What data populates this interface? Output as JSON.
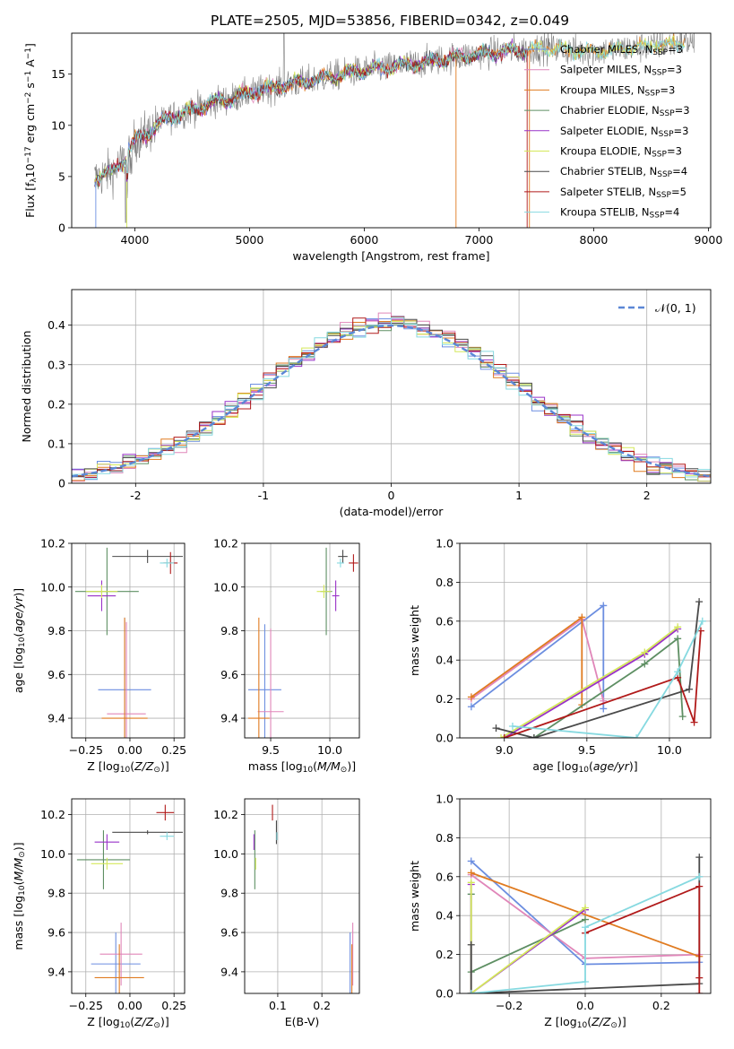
{
  "figure_title": "PLATE=2505, MJD=53856, FIBERID=0342, z=0.049",
  "colors": {
    "Chabrier MILES": "#6c8ee0",
    "Salpeter MILES": "#e086b9",
    "Kroupa MILES": "#e07b20",
    "Chabrier ELODIE": "#5e8f63",
    "Salpeter ELODIE": "#9932c8",
    "Kroupa ELODIE": "#d4e85a",
    "Chabrier STELIB": "#4a4a4a",
    "Salpeter STELIB": "#b11a1a",
    "Kroupa STELIB": "#86d9e0",
    "data": "#808080",
    "normal": "#5b87d6"
  },
  "legend_spectrum": [
    {
      "key": "Chabrier MILES",
      "prefix": "Chabrier MILES, N",
      "nssp": "=3"
    },
    {
      "key": "Salpeter MILES",
      "prefix": "Salpeter MILES, N",
      "nssp": "=3"
    },
    {
      "key": "Kroupa MILES",
      "prefix": "Kroupa MILES, N",
      "nssp": "=3"
    },
    {
      "key": "Chabrier ELODIE",
      "prefix": "Chabrier ELODIE, N",
      "nssp": "=3"
    },
    {
      "key": "Salpeter ELODIE",
      "prefix": "Salpeter ELODIE, N",
      "nssp": "=3"
    },
    {
      "key": "Kroupa ELODIE",
      "prefix": "Kroupa ELODIE, N",
      "nssp": "=3"
    },
    {
      "key": "Chabrier STELIB",
      "prefix": "Chabrier STELIB, N",
      "nssp": "=4"
    },
    {
      "key": "Salpeter STELIB",
      "prefix": "Salpeter STELIB, N",
      "nssp": "=5"
    },
    {
      "key": "Kroupa STELIB",
      "prefix": "Kroupa STELIB, N",
      "nssp": "=4"
    }
  ],
  "legend_ssp_subscript": "SSP",
  "legend_hist": "𝒩(0, 1)",
  "chart_data": [
    {
      "id": "spectrum",
      "type": "line",
      "xlabel": "wavelength [Angstrom, rest frame]",
      "ylabel": "Flux [f_λ 10^-17 erg cm^-2 s^-1 A^-1]",
      "xlim": [
        3450,
        9020
      ],
      "ylim": [
        0,
        19
      ],
      "xticks": [
        4000,
        5000,
        6000,
        7000,
        8000,
        9000
      ],
      "yticks": [
        0,
        5,
        10,
        15
      ],
      "grid": false,
      "legend": "top-right",
      "continuum": [
        [
          3650,
          4.8
        ],
        [
          3800,
          5.5
        ],
        [
          3900,
          6.5
        ],
        [
          4000,
          8.5
        ],
        [
          4100,
          9.2
        ],
        [
          4300,
          10.8
        ],
        [
          4500,
          11.5
        ],
        [
          4700,
          12.3
        ],
        [
          4900,
          12.8
        ],
        [
          5100,
          13.4
        ],
        [
          5300,
          13.9
        ],
        [
          5500,
          14.3
        ],
        [
          5700,
          14.8
        ],
        [
          5900,
          15.2
        ],
        [
          6100,
          15.5
        ],
        [
          6300,
          15.8
        ],
        [
          6500,
          16.1
        ],
        [
          6700,
          16.5
        ],
        [
          6900,
          16.8
        ],
        [
          7100,
          17.1
        ],
        [
          7300,
          17.3
        ],
        [
          7420,
          17.4
        ]
      ],
      "model_extension": [
        [
          7420,
          17.4
        ],
        [
          7600,
          17.6
        ],
        [
          7800,
          17.3
        ],
        [
          8000,
          17.2
        ],
        [
          8200,
          17.4
        ],
        [
          8400,
          17.6
        ],
        [
          8600,
          17.9
        ],
        [
          8800,
          18.1
        ]
      ]
    },
    {
      "id": "residuals",
      "type": "step",
      "xlabel": "(data-model)/error",
      "ylabel": "Normed distribution",
      "xlim": [
        -2.5,
        2.5
      ],
      "ylim": [
        0,
        0.49
      ],
      "xticks": [
        -2,
        -1,
        0,
        1,
        2
      ],
      "yticks": [
        0.0,
        0.1,
        0.2,
        0.3,
        0.4
      ],
      "grid": true,
      "legend": "top-right"
    },
    {
      "id": "age_vs_Z",
      "type": "errorbar",
      "xlabel": "Z [log10(Z/Z☉)]",
      "ylabel": "age [log10(age/yr)]",
      "xlim": [
        -0.33,
        0.31
      ],
      "ylim": [
        9.31,
        10.2
      ],
      "xticks": [
        -0.25,
        0.0,
        0.25
      ],
      "xticklabels": [
        "−0.25",
        "0.00",
        "0.25"
      ],
      "yticks": [
        9.4,
        9.6,
        9.8,
        10.0,
        10.2
      ],
      "yticklabels": [
        "9.4",
        "9.6",
        "9.8",
        "10.0",
        "10.2"
      ],
      "grid": true,
      "points": [
        {
          "model": "Chabrier MILES",
          "x": -0.03,
          "xerr": 0.15,
          "y": 9.53,
          "yerr": 0.33
        },
        {
          "model": "Salpeter MILES",
          "x": -0.02,
          "xerr": 0.11,
          "y": 9.42,
          "yerr": 0.42
        },
        {
          "model": "Kroupa MILES",
          "x": -0.03,
          "xerr": 0.13,
          "y": 9.4,
          "yerr": 0.46
        },
        {
          "model": "Chabrier ELODIE",
          "x": -0.13,
          "xerr": 0.18,
          "y": 9.98,
          "yerr": 0.2
        },
        {
          "model": "Salpeter ELODIE",
          "x": -0.16,
          "xerr": 0.08,
          "y": 9.96,
          "yerr": 0.07
        },
        {
          "model": "Kroupa ELODIE",
          "x": -0.16,
          "xerr": 0.09,
          "y": 9.98,
          "yerr": 0.03
        },
        {
          "model": "Chabrier STELIB",
          "x": 0.1,
          "xerr": 0.2,
          "y": 10.14,
          "yerr": 0.03
        },
        {
          "model": "Salpeter STELIB",
          "x": 0.23,
          "xerr": 0.04,
          "y": 10.11,
          "yerr": 0.05
        },
        {
          "model": "Kroupa STELIB",
          "x": 0.21,
          "xerr": 0.04,
          "y": 10.11,
          "yerr": 0.02
        }
      ]
    },
    {
      "id": "age_vs_mass",
      "type": "errorbar",
      "xlabel": "mass [log10(M/M☉)]",
      "ylabel": "",
      "xlim": [
        9.28,
        10.25
      ],
      "ylim": [
        9.31,
        10.2
      ],
      "xticks": [
        9.5,
        10.0
      ],
      "xticklabels": [
        "9.5",
        "10.0"
      ],
      "yticks": [
        9.4,
        9.6,
        9.8,
        10.0,
        10.2
      ],
      "yticklabels": [
        "9.4",
        "9.6",
        "9.8",
        "10.0",
        "10.2"
      ],
      "grid": true,
      "points": [
        {
          "model": "Chabrier MILES",
          "x": 9.45,
          "xerr": 0.14,
          "y": 9.53,
          "yerr": 0.3
        },
        {
          "model": "Salpeter MILES",
          "x": 9.5,
          "xerr": 0.11,
          "y": 9.43,
          "yerr": 0.38
        },
        {
          "model": "Kroupa MILES",
          "x": 9.4,
          "xerr": 0.09,
          "y": 9.4,
          "yerr": 0.46
        },
        {
          "model": "Chabrier ELODIE",
          "x": 9.97,
          "xerr": 0.05,
          "y": 9.98,
          "yerr": 0.2
        },
        {
          "model": "Salpeter ELODIE",
          "x": 10.05,
          "xerr": 0.03,
          "y": 9.96,
          "yerr": 0.07
        },
        {
          "model": "Kroupa ELODIE",
          "x": 9.95,
          "xerr": 0.06,
          "y": 9.98,
          "yerr": 0.03
        },
        {
          "model": "Chabrier STELIB",
          "x": 10.11,
          "xerr": 0.04,
          "y": 10.14,
          "yerr": 0.03
        },
        {
          "model": "Salpeter STELIB",
          "x": 10.2,
          "xerr": 0.04,
          "y": 10.11,
          "yerr": 0.04
        },
        {
          "model": "Kroupa STELIB",
          "x": 10.09,
          "xerr": 0.03,
          "y": 10.11,
          "yerr": 0.02
        }
      ]
    },
    {
      "id": "weight_vs_age",
      "type": "line",
      "xlabel": "age [log10(age/yr)]",
      "ylabel": "mass weight",
      "xlim": [
        8.73,
        10.25
      ],
      "ylim": [
        0,
        1.0
      ],
      "xticks": [
        9.0,
        9.5,
        10.0
      ],
      "xticklabels": [
        "9.0",
        "9.5",
        "10.0"
      ],
      "yticks": [
        0,
        0.2,
        0.4,
        0.6,
        0.8,
        1.0
      ],
      "yticklabels": [
        "0.0",
        "0.2",
        "0.4",
        "0.6",
        "0.8",
        "1.0"
      ],
      "grid": true,
      "series": [
        {
          "model": "Chabrier MILES",
          "x": [
            8.8,
            9.6,
            9.6
          ],
          "y": [
            0.16,
            0.68,
            0.15
          ]
        },
        {
          "model": "Salpeter MILES",
          "x": [
            8.8,
            9.47,
            9.6
          ],
          "y": [
            0.2,
            0.61,
            0.19
          ]
        },
        {
          "model": "Kroupa MILES",
          "x": [
            8.8,
            9.47,
            9.47
          ],
          "y": [
            0.21,
            0.62,
            0.17
          ]
        },
        {
          "model": "Chabrier ELODIE",
          "x": [
            9.18,
            9.85,
            10.05,
            10.08
          ],
          "y": [
            0.0,
            0.38,
            0.51,
            0.11
          ]
        },
        {
          "model": "Salpeter ELODIE",
          "x": [
            9.0,
            9.85,
            10.05
          ],
          "y": [
            0.0,
            0.43,
            0.56
          ]
        },
        {
          "model": "Kroupa ELODIE",
          "x": [
            8.98,
            9.85,
            10.05
          ],
          "y": [
            0.0,
            0.44,
            0.57
          ]
        },
        {
          "model": "Chabrier STELIB",
          "x": [
            8.95,
            9.18,
            10.12,
            10.18
          ],
          "y": [
            0.05,
            0.0,
            0.25,
            0.7
          ]
        },
        {
          "model": "Salpeter STELIB",
          "x": [
            9.0,
            10.05,
            10.15,
            10.19
          ],
          "y": [
            0.0,
            0.31,
            0.08,
            0.55
          ]
        },
        {
          "model": "Kroupa STELIB",
          "x": [
            9.05,
            9.8,
            10.05,
            10.2
          ],
          "y": [
            0.06,
            0.0,
            0.34,
            0.6
          ]
        }
      ]
    },
    {
      "id": "mass_vs_Z",
      "type": "errorbar",
      "xlabel": "Z [log10(Z/Z☉)]",
      "ylabel": "mass [log10(M/M☉)]",
      "xlim": [
        -0.33,
        0.31
      ],
      "ylim": [
        9.29,
        10.28
      ],
      "xticks": [
        -0.25,
        0.0,
        0.25
      ],
      "xticklabels": [
        "−0.25",
        "0.00",
        "0.25"
      ],
      "yticks": [
        9.4,
        9.6,
        9.8,
        10.0,
        10.2
      ],
      "yticklabels": [
        "9.4",
        "9.6",
        "9.8",
        "10.0",
        "10.2"
      ],
      "grid": true,
      "points": [
        {
          "model": "Chabrier MILES",
          "x": -0.08,
          "xerr": 0.14,
          "y": 9.44,
          "yerr": 0.16
        },
        {
          "model": "Salpeter MILES",
          "x": -0.05,
          "xerr": 0.12,
          "y": 9.49,
          "yerr": 0.16
        },
        {
          "model": "Kroupa MILES",
          "x": -0.06,
          "xerr": 0.14,
          "y": 9.37,
          "yerr": 0.17
        },
        {
          "model": "Chabrier ELODIE",
          "x": -0.15,
          "xerr": 0.15,
          "y": 9.97,
          "yerr": 0.15
        },
        {
          "model": "Salpeter ELODIE",
          "x": -0.13,
          "xerr": 0.07,
          "y": 10.06,
          "yerr": 0.04
        },
        {
          "model": "Kroupa ELODIE",
          "x": -0.13,
          "xerr": 0.09,
          "y": 9.95,
          "yerr": 0.03
        },
        {
          "model": "Chabrier STELIB",
          "x": 0.1,
          "xerr": 0.2,
          "y": 10.11,
          "yerr": 0.01
        },
        {
          "model": "Salpeter STELIB",
          "x": 0.2,
          "xerr": 0.05,
          "y": 10.21,
          "yerr": 0.04
        },
        {
          "model": "Kroupa STELIB",
          "x": 0.21,
          "xerr": 0.04,
          "y": 10.09,
          "yerr": 0.02
        }
      ]
    },
    {
      "id": "mass_vs_EBV",
      "type": "errorbar",
      "xlabel": "E(B-V)",
      "ylabel": "",
      "xlim": [
        0.025,
        0.285
      ],
      "ylim": [
        9.29,
        10.28
      ],
      "xticks": [
        0.1,
        0.2
      ],
      "xticklabels": [
        "0.1",
        "0.2"
      ],
      "yticks": [
        9.4,
        9.6,
        9.8,
        10.0,
        10.2
      ],
      "yticklabels": [
        "9.4",
        "9.6",
        "9.8",
        "10.0",
        "10.2"
      ],
      "grid": true,
      "points": [
        {
          "model": "Chabrier MILES",
          "x": 0.264,
          "xerr": 0.0,
          "y": 9.44,
          "yerr": 0.16
        },
        {
          "model": "Salpeter MILES",
          "x": 0.27,
          "xerr": 0.0,
          "y": 9.49,
          "yerr": 0.16
        },
        {
          "model": "Kroupa MILES",
          "x": 0.268,
          "xerr": 0.0,
          "y": 9.37,
          "yerr": 0.17
        },
        {
          "model": "Chabrier ELODIE",
          "x": 0.048,
          "xerr": 0.0,
          "y": 9.97,
          "yerr": 0.15
        },
        {
          "model": "Salpeter ELODIE",
          "x": 0.046,
          "xerr": 0.0,
          "y": 10.06,
          "yerr": 0.04
        },
        {
          "model": "Kroupa ELODIE",
          "x": 0.05,
          "xerr": 0.0,
          "y": 9.95,
          "yerr": 0.03
        },
        {
          "model": "Chabrier STELIB",
          "x": 0.097,
          "xerr": 0.0,
          "y": 10.11,
          "yerr": 0.06
        },
        {
          "model": "Salpeter STELIB",
          "x": 0.088,
          "xerr": 0.0,
          "y": 10.21,
          "yerr": 0.04
        },
        {
          "model": "Kroupa STELIB",
          "x": 0.098,
          "xerr": 0.0,
          "y": 10.09,
          "yerr": 0.02
        }
      ]
    },
    {
      "id": "weight_vs_Z",
      "type": "line",
      "xlabel": "Z [log10(Z/Z☉)]",
      "ylabel": "mass weight",
      "xlim": [
        -0.33,
        0.33
      ],
      "ylim": [
        0,
        1.0
      ],
      "xticks": [
        -0.2,
        0.0,
        0.2
      ],
      "xticklabels": [
        "−0.2",
        "0.0",
        "0.2"
      ],
      "yticks": [
        0,
        0.2,
        0.4,
        0.6,
        0.8,
        1.0
      ],
      "yticklabels": [
        "0.0",
        "0.2",
        "0.4",
        "0.6",
        "0.8",
        "1.0"
      ],
      "grid": true,
      "series": [
        {
          "model": "Chabrier MILES",
          "x": [
            -0.3,
            0.0,
            0.3
          ],
          "y": [
            0.68,
            0.15,
            0.16
          ]
        },
        {
          "model": "Salpeter MILES",
          "x": [
            -0.3,
            0.0,
            0.3
          ],
          "y": [
            0.61,
            0.18,
            0.2
          ]
        },
        {
          "model": "Kroupa MILES",
          "x": [
            -0.3,
            0.3
          ],
          "y": [
            0.62,
            0.19
          ]
        },
        {
          "model": "Chabrier ELODIE",
          "x": [
            -0.3,
            -0.3,
            0.0
          ],
          "y": [
            0.51,
            0.11,
            0.38
          ]
        },
        {
          "model": "Salpeter ELODIE",
          "x": [
            -0.3,
            -0.3,
            0.0
          ],
          "y": [
            0.56,
            0.0,
            0.43
          ]
        },
        {
          "model": "Kroupa ELODIE",
          "x": [
            -0.3,
            -0.3,
            0.0
          ],
          "y": [
            0.57,
            0.0,
            0.44
          ]
        },
        {
          "model": "Chabrier STELIB",
          "x": [
            -0.3,
            -0.3,
            0.3,
            0.3
          ],
          "y": [
            0.25,
            0.0,
            0.05,
            0.7
          ]
        },
        {
          "model": "Salpeter STELIB",
          "x": [
            0.0,
            0.3,
            0.3,
            0.3
          ],
          "y": [
            0.31,
            0.55,
            0.08,
            0.0
          ]
        },
        {
          "model": "Kroupa STELIB",
          "x": [
            -0.3,
            0.0,
            0.0,
            0.3
          ],
          "y": [
            0.0,
            0.06,
            0.34,
            0.6
          ]
        }
      ]
    }
  ]
}
